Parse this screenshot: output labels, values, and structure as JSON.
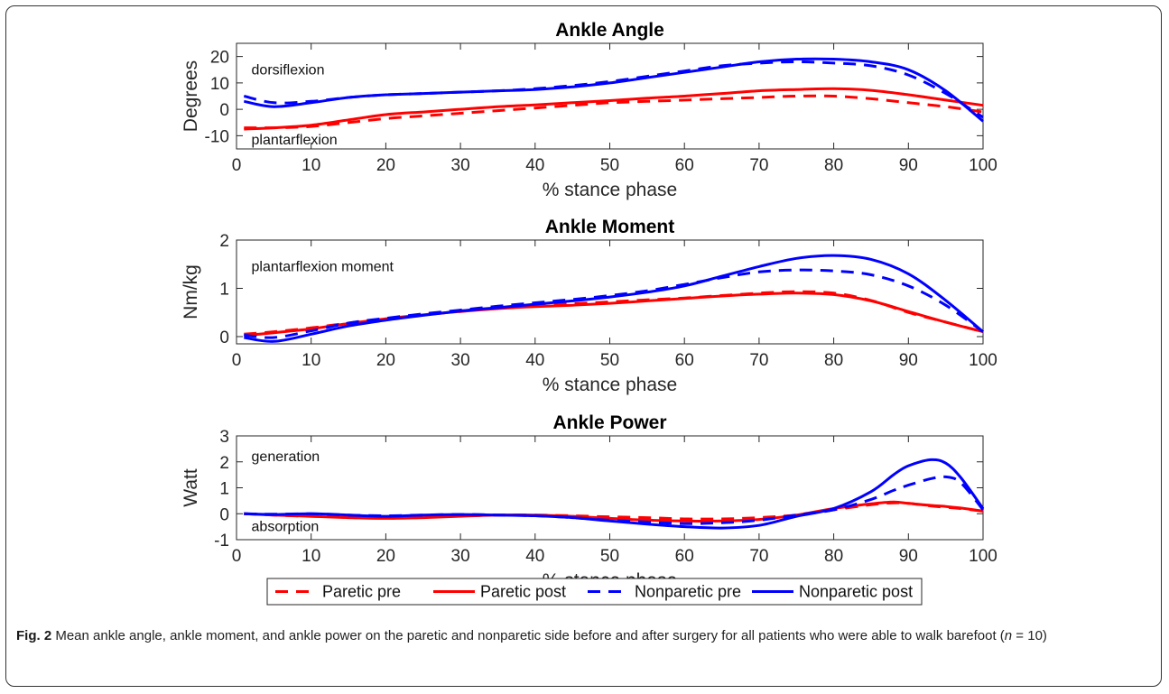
{
  "colors": {
    "paretic": "#ff0000",
    "nonparetic": "#0000ff",
    "axis": "#262626"
  },
  "legend": {
    "placement": "bottom-center",
    "entries": [
      {
        "label": "Paretic pre",
        "color": "#ff0000",
        "dash": true
      },
      {
        "label": "Paretic post",
        "color": "#ff0000",
        "dash": false
      },
      {
        "label": "Nonparetic pre",
        "color": "#0000ff",
        "dash": true
      },
      {
        "label": "Nonparetic post",
        "color": "#0000ff",
        "dash": false
      }
    ]
  },
  "chart_data": [
    {
      "type": "line",
      "title": "Ankle Angle",
      "xlabel": "% stance phase",
      "ylabel": "Degrees",
      "xlim": [
        0,
        100
      ],
      "ylim": [
        -15,
        25
      ],
      "xticks": [
        0,
        10,
        20,
        30,
        40,
        50,
        60,
        70,
        80,
        90,
        100
      ],
      "yticks": [
        -10,
        0,
        10,
        20
      ],
      "grid": false,
      "annotations": [
        {
          "text": "dorsiflexion",
          "x": 2,
          "y": 15
        },
        {
          "text": "plantarflexion",
          "x": 2,
          "y": -11.5
        }
      ],
      "x": [
        1,
        5,
        10,
        15,
        20,
        25,
        30,
        35,
        40,
        45,
        50,
        55,
        60,
        65,
        70,
        75,
        80,
        85,
        90,
        95,
        100
      ],
      "series": [
        {
          "name": "Paretic pre",
          "values": [
            -7,
            -7,
            -6.5,
            -5,
            -3.5,
            -2.5,
            -1.5,
            -0.5,
            0.5,
            1.5,
            2.5,
            3,
            3.5,
            4,
            4.5,
            5,
            5,
            4,
            2.5,
            1,
            -1
          ]
        },
        {
          "name": "Paretic post",
          "values": [
            -7.5,
            -7,
            -6,
            -4,
            -2,
            -1,
            0,
            1,
            1.7,
            2.5,
            3.3,
            4.2,
            5,
            6,
            7,
            7.5,
            7.8,
            7.2,
            5.5,
            3.5,
            1.5
          ]
        },
        {
          "name": "Nonparetic pre",
          "values": [
            5,
            2.5,
            3,
            4.5,
            5.5,
            6,
            6.5,
            7,
            7.8,
            9,
            10.5,
            12.5,
            14.5,
            16.5,
            17.5,
            18,
            17.5,
            16.5,
            13,
            6,
            -3
          ]
        },
        {
          "name": "Nonparetic post",
          "values": [
            3,
            1,
            2.5,
            4.5,
            5.5,
            6,
            6.5,
            7,
            7.5,
            8.5,
            10,
            12,
            14,
            16,
            18,
            19,
            19,
            18,
            15,
            7,
            -4.5
          ]
        }
      ]
    },
    {
      "type": "line",
      "title": "Ankle Moment",
      "xlabel": "% stance phase",
      "ylabel": "Nm/kg",
      "xlim": [
        0,
        100
      ],
      "ylim": [
        -0.15,
        2
      ],
      "xticks": [
        0,
        10,
        20,
        30,
        40,
        50,
        60,
        70,
        80,
        90,
        100
      ],
      "yticks": [
        0,
        1,
        2
      ],
      "grid": false,
      "annotations": [
        {
          "text": "plantarflexion moment",
          "x": 2,
          "y": 1.45
        }
      ],
      "x": [
        1,
        5,
        10,
        15,
        20,
        25,
        30,
        35,
        40,
        45,
        50,
        55,
        60,
        65,
        70,
        75,
        80,
        85,
        90,
        95,
        100
      ],
      "series": [
        {
          "name": "Paretic pre",
          "values": [
            0.05,
            0.1,
            0.18,
            0.28,
            0.37,
            0.45,
            0.53,
            0.6,
            0.65,
            0.68,
            0.72,
            0.76,
            0.8,
            0.85,
            0.9,
            0.93,
            0.9,
            0.75,
            0.5,
            0.3,
            0.1
          ]
        },
        {
          "name": "Paretic post",
          "values": [
            0.02,
            0.08,
            0.16,
            0.27,
            0.37,
            0.45,
            0.52,
            0.58,
            0.62,
            0.65,
            0.69,
            0.74,
            0.79,
            0.84,
            0.88,
            0.9,
            0.87,
            0.74,
            0.52,
            0.3,
            0.1
          ]
        },
        {
          "name": "Nonparetic pre",
          "values": [
            0.03,
            -0.02,
            0.12,
            0.28,
            0.38,
            0.47,
            0.55,
            0.63,
            0.7,
            0.77,
            0.85,
            0.95,
            1.08,
            1.22,
            1.34,
            1.38,
            1.36,
            1.28,
            1.05,
            0.65,
            0.1
          ]
        },
        {
          "name": "Nonparetic post",
          "values": [
            -0.02,
            -0.1,
            0.05,
            0.22,
            0.34,
            0.44,
            0.53,
            0.6,
            0.67,
            0.74,
            0.82,
            0.92,
            1.05,
            1.25,
            1.45,
            1.62,
            1.68,
            1.6,
            1.3,
            0.75,
            0.1
          ]
        }
      ]
    },
    {
      "type": "line",
      "title": "Ankle Power",
      "xlabel": "% stance phase",
      "ylabel": "Watt",
      "xlim": [
        0,
        100
      ],
      "ylim": [
        -1,
        3
      ],
      "xticks": [
        0,
        10,
        20,
        30,
        40,
        50,
        60,
        70,
        80,
        90,
        100
      ],
      "yticks": [
        -1,
        0,
        1,
        2,
        3
      ],
      "grid": false,
      "annotations": [
        {
          "text": "generation",
          "x": 2,
          "y": 2.2
        },
        {
          "text": "absorption",
          "x": 2,
          "y": -0.5
        }
      ],
      "x": [
        1,
        5,
        10,
        15,
        20,
        25,
        30,
        35,
        40,
        45,
        50,
        55,
        60,
        65,
        70,
        75,
        80,
        85,
        88,
        90,
        93,
        95,
        97,
        100
      ],
      "series": [
        {
          "name": "Paretic pre",
          "values": [
            0,
            -0.05,
            -0.1,
            -0.1,
            -0.12,
            -0.1,
            -0.08,
            -0.05,
            -0.05,
            -0.08,
            -0.12,
            -0.15,
            -0.2,
            -0.2,
            -0.15,
            -0.05,
            0.15,
            0.35,
            0.42,
            0.4,
            0.3,
            0.25,
            0.2,
            0.1
          ]
        },
        {
          "name": "Paretic post",
          "values": [
            0,
            -0.05,
            -0.1,
            -0.15,
            -0.18,
            -0.15,
            -0.1,
            -0.05,
            -0.05,
            -0.1,
            -0.18,
            -0.25,
            -0.28,
            -0.28,
            -0.22,
            -0.05,
            0.2,
            0.38,
            0.45,
            0.4,
            0.32,
            0.28,
            0.22,
            0.1
          ]
        },
        {
          "name": "Nonparetic pre",
          "values": [
            0,
            -0.02,
            0,
            -0.05,
            -0.08,
            -0.05,
            -0.03,
            -0.05,
            -0.08,
            -0.15,
            -0.25,
            -0.32,
            -0.38,
            -0.35,
            -0.25,
            -0.05,
            0.15,
            0.55,
            0.9,
            1.1,
            1.35,
            1.42,
            1.2,
            0.15
          ]
        },
        {
          "name": "Nonparetic post",
          "values": [
            0,
            -0.03,
            0,
            -0.05,
            -0.1,
            -0.05,
            -0.03,
            -0.05,
            -0.08,
            -0.15,
            -0.28,
            -0.4,
            -0.5,
            -0.55,
            -0.45,
            -0.1,
            0.2,
            0.85,
            1.5,
            1.85,
            2.08,
            1.95,
            1.4,
            0.2
          ]
        }
      ]
    }
  ],
  "caption": {
    "label": "Fig. 2",
    "text_before": " Mean ankle angle, ankle moment, and ankle power on the paretic and nonparetic side before and after surgery for all patients who were able to walk barefoot (",
    "var": "n",
    "text_after": " = 10)"
  }
}
